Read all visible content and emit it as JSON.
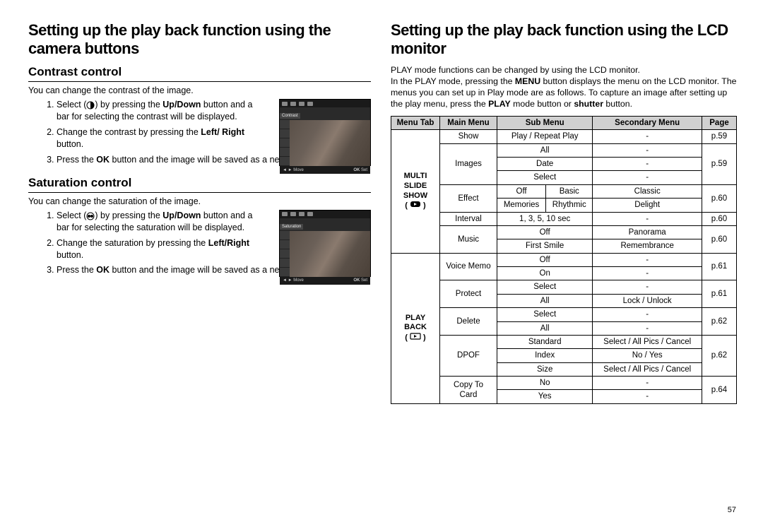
{
  "left": {
    "title": "Setting up the play back function using the camera buttons",
    "section1": {
      "heading": "Contrast control",
      "intro": "You can change the contrast of the image.",
      "thumb_label": "Contrast",
      "thumb_move": "Move",
      "thumb_ok": "OK",
      "thumb_set": "Set",
      "steps": [
        "Select ( contrast-icon ) by pressing the Up/Down button and a bar for selecting the contrast will be displayed.",
        "Change the contrast by pressing the Left/Right button.",
        "Press the OK button and the image will be saved as a new file name."
      ],
      "step1_pre": "Select (",
      "step1_post": ") by pressing the ",
      "step1_bold1": "Up/Down",
      "step1_tail": " button and a bar for selecting the contrast will be displayed.",
      "step2_pre": "Change the contrast by pressing the ",
      "step2_bold": "Left/ Right",
      "step2_tail": " button.",
      "step3_pre": "Press the ",
      "step3_bold": "OK",
      "step3_tail": " button and the image will be saved as a new file name."
    },
    "section2": {
      "heading": "Saturation control",
      "intro": "You can change the saturation of the image.",
      "thumb_label": "Saturation",
      "thumb_move": "Move",
      "thumb_ok": "OK",
      "thumb_set": "Set",
      "step1_pre": "Select (",
      "step1_post": ") by pressing the ",
      "step1_bold1": "Up/Down",
      "step1_tail": " button and a bar for selecting the saturation will be displayed.",
      "step2_pre": "Change the saturation by pressing the ",
      "step2_bold": "Left/Right",
      "step2_tail": " button.",
      "step3_pre": "Press the ",
      "step3_bold": "OK",
      "step3_tail": " button and the image will be saved as a new file name."
    }
  },
  "right": {
    "title": "Setting up the play back function using the LCD monitor",
    "desc_pre": "PLAY mode functions can be changed by using the LCD monitor.\nIn the PLAY mode, pressing the ",
    "desc_b1": "MENU",
    "desc_mid1": " button displays the menu on the LCD monitor. The menus you can set up in Play mode are as follows. To capture an image after setting up the play menu, press the ",
    "desc_b2": "PLAY",
    "desc_mid2": " mode button or ",
    "desc_b3": "shutter",
    "desc_tail": " button.",
    "table": {
      "headers": [
        "Menu Tab",
        "Main Menu",
        "Sub Menu",
        "Secondary Menu",
        "Page"
      ],
      "col_widths": [
        "60px",
        "72px",
        "",
        "",
        "40px"
      ],
      "header_bg": "#d0d0d0",
      "border_color": "#000000",
      "tab1": "MULTI SLIDE SHOW",
      "tab2": "PLAY BACK",
      "rows": [
        {
          "main": "Show",
          "sub": "Play / Repeat Play",
          "submenu_span": 2,
          "secondary": "-",
          "page": "p.59"
        },
        {
          "main": "Images",
          "rowspan": 3,
          "sub": "All",
          "submenu_span": 2,
          "secondary": "-",
          "page": "p.59",
          "page_rowspan": 3
        },
        {
          "sub": "Date",
          "submenu_span": 2,
          "secondary": "-"
        },
        {
          "sub": "Select",
          "submenu_span": 2,
          "secondary": "-"
        },
        {
          "main": "Effect",
          "rowspan": 2,
          "effects": [
            [
              "Off",
              "Basic",
              "Classic"
            ],
            [
              "Memories",
              "Rhythmic",
              "Delight"
            ]
          ],
          "page": "p.60"
        },
        {
          "main": "Interval",
          "sub": "1, 3, 5, 10 sec",
          "submenu_span": 2,
          "secondary": "-",
          "page": "p.60"
        },
        {
          "main": "Music",
          "rowspan": 2,
          "music": [
            [
              "Off",
              "Panorama"
            ],
            [
              "First Smile",
              "Remembrance"
            ]
          ],
          "page": "p.60"
        },
        {
          "main": "Voice Memo",
          "rowspan": 2,
          "sub": "Off",
          "submenu_span": 2,
          "secondary": "-",
          "page": "p.61",
          "page_rowspan": 2
        },
        {
          "sub": "On",
          "submenu_span": 2,
          "secondary": "-"
        },
        {
          "main": "Protect",
          "rowspan": 2,
          "sub": "Select",
          "submenu_span": 2,
          "secondary": "-",
          "page": "p.61",
          "page_rowspan": 2
        },
        {
          "sub": "All",
          "submenu_span": 2,
          "secondary": "Lock / Unlock"
        },
        {
          "main": "Delete",
          "rowspan": 2,
          "sub": "Select",
          "submenu_span": 2,
          "secondary": "-",
          "page": "p.62",
          "page_rowspan": 2
        },
        {
          "sub": "All",
          "submenu_span": 2,
          "secondary": "-"
        },
        {
          "main": "DPOF",
          "rowspan": 3,
          "sub": "Standard",
          "submenu_span": 2,
          "secondary": "Select / All Pics / Cancel",
          "page": "p.62",
          "page_rowspan": 3
        },
        {
          "sub": "Index",
          "secondary": "No / Yes"
        },
        {
          "sub": "Size",
          "secondary": "Select / All Pics / Cancel"
        },
        {
          "main": "Copy To Card",
          "rowspan": 2,
          "sub": "No",
          "submenu_span": 2,
          "secondary": "-",
          "page": "p.64",
          "page_rowspan": 2
        },
        {
          "sub": "Yes",
          "submenu_span": 2,
          "secondary": "-"
        }
      ]
    }
  },
  "page_number": "57"
}
